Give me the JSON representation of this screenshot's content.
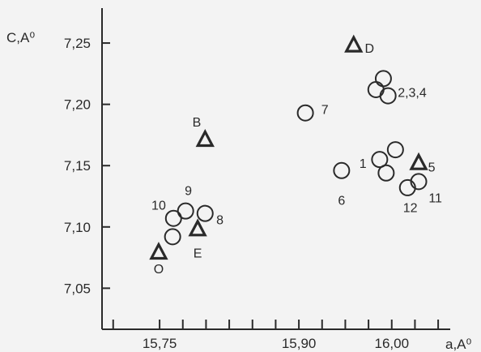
{
  "chart_data": {
    "type": "scatter",
    "xlabel": "a,A⁰",
    "ylabel": "C,A⁰",
    "xlim": [
      15.688,
      16.063
    ],
    "ylim": [
      7.0165,
      7.2785
    ],
    "grid": false,
    "x_tick_labels": [
      {
        "value": 15.75,
        "label": "15,75"
      },
      {
        "value": 15.9,
        "label": "15,90"
      },
      {
        "value": 16.0,
        "label": "16,00"
      }
    ],
    "x_minor_ticks": [
      15.7,
      15.75,
      15.775,
      15.8,
      15.825,
      15.85,
      15.875,
      15.9,
      15.925,
      15.95,
      15.975,
      16.0,
      16.025,
      16.05
    ],
    "y_ticks": [
      {
        "value": 7.25,
        "label": "7,25"
      },
      {
        "value": 7.2,
        "label": "7,20"
      },
      {
        "value": 7.15,
        "label": "7,15"
      },
      {
        "value": 7.1,
        "label": "7,10"
      },
      {
        "value": 7.05,
        "label": "7,05"
      }
    ],
    "series": [
      {
        "marker": "circle",
        "points": [
          {
            "x": 15.907,
            "y": 7.193
          },
          {
            "x": 15.946,
            "y": 7.146
          },
          {
            "x": 15.983,
            "y": 7.212
          },
          {
            "x": 15.991,
            "y": 7.221
          },
          {
            "x": 15.996,
            "y": 7.207
          },
          {
            "x": 15.987,
            "y": 7.155
          },
          {
            "x": 15.994,
            "y": 7.144
          },
          {
            "x": 16.004,
            "y": 7.163
          },
          {
            "x": 16.017,
            "y": 7.132
          },
          {
            "x": 16.029,
            "y": 7.137
          },
          {
            "x": 15.764,
            "y": 7.092
          },
          {
            "x": 15.765,
            "y": 7.107
          },
          {
            "x": 15.778,
            "y": 7.113
          },
          {
            "x": 15.799,
            "y": 7.111
          }
        ]
      },
      {
        "marker": "triangle",
        "points": [
          {
            "x": 15.749,
            "y": 7.079
          },
          {
            "x": 15.791,
            "y": 7.098
          },
          {
            "x": 15.799,
            "y": 7.171
          },
          {
            "x": 15.959,
            "y": 7.248
          },
          {
            "x": 16.029,
            "y": 7.152
          }
        ]
      }
    ],
    "annotations": [
      {
        "text": "O",
        "x": 15.749,
        "y": 7.066
      },
      {
        "text": "E",
        "x": 15.791,
        "y": 7.079
      },
      {
        "text": "B",
        "x": 15.79,
        "y": 7.186
      },
      {
        "text": "D",
        "x": 15.976,
        "y": 7.246
      },
      {
        "text": "5",
        "x": 16.043,
        "y": 7.149
      },
      {
        "text": "7",
        "x": 15.928,
        "y": 7.196
      },
      {
        "text": "6",
        "x": 15.946,
        "y": 7.122
      },
      {
        "text": "2,3,4",
        "x": 16.022,
        "y": 7.21
      },
      {
        "text": "1",
        "x": 15.969,
        "y": 7.152
      },
      {
        "text": "11",
        "x": 16.047,
        "y": 7.124
      },
      {
        "text": "12",
        "x": 16.02,
        "y": 7.116
      },
      {
        "text": "10",
        "x": 15.749,
        "y": 7.118
      },
      {
        "text": "9",
        "x": 15.781,
        "y": 7.13
      },
      {
        "text": "8",
        "x": 15.815,
        "y": 7.106
      }
    ]
  }
}
